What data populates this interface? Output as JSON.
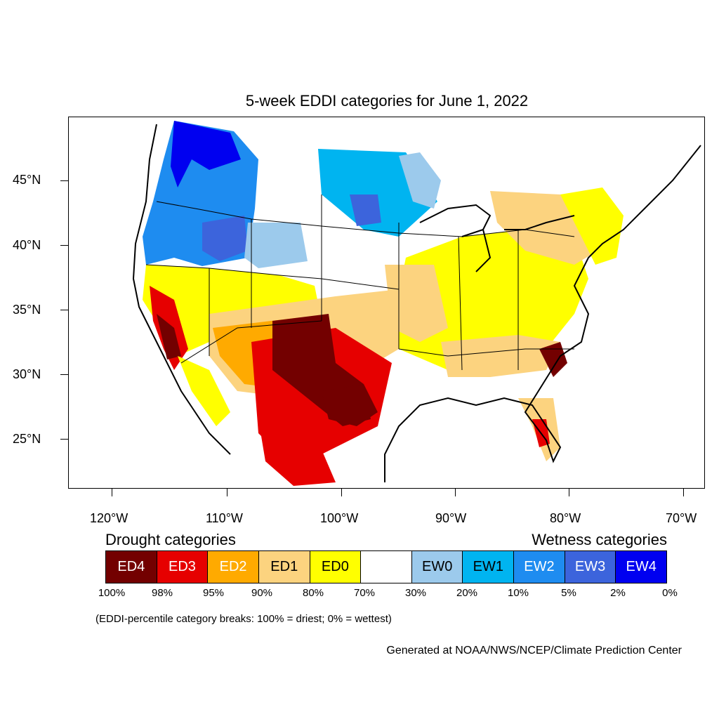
{
  "title": "5-week EDDI categories for June 1, 2022",
  "latitude_labels": [
    "45°N",
    "40°N",
    "35°N",
    "30°N",
    "25°N"
  ],
  "longitude_labels": [
    "120°W",
    "110°W",
    "100°W",
    "90°W",
    "80°W",
    "70°W"
  ],
  "legend": {
    "drought_title": "Drought categories",
    "wetness_title": "Wetness categories",
    "categories": [
      {
        "label": "ED4",
        "color": "#730000",
        "text_color": "#ffffff"
      },
      {
        "label": "ED3",
        "color": "#e60000",
        "text_color": "#ffffff"
      },
      {
        "label": "ED2",
        "color": "#ffaa00",
        "text_color": "#ffffff"
      },
      {
        "label": "ED1",
        "color": "#fcd37f",
        "text_color": "#000000"
      },
      {
        "label": "ED0",
        "color": "#ffff00",
        "text_color": "#000000"
      },
      {
        "label": "",
        "color": "#ffffff",
        "text_color": "#000000"
      },
      {
        "label": "EW0",
        "color": "#9ccaec",
        "text_color": "#000000"
      },
      {
        "label": "EW1",
        "color": "#00b4f0",
        "text_color": "#000000"
      },
      {
        "label": "EW2",
        "color": "#1e8cf0",
        "text_color": "#ffffff"
      },
      {
        "label": "EW3",
        "color": "#3c64dc",
        "text_color": "#ffffff"
      },
      {
        "label": "EW4",
        "color": "#0000f0",
        "text_color": "#ffffff"
      }
    ],
    "percentiles": [
      "100%",
      "98%",
      "95%",
      "90%",
      "80%",
      "70%",
      "30%",
      "20%",
      "10%",
      "5%",
      "2%",
      "0%"
    ]
  },
  "breaks_note": "(EDDI-percentile category breaks: 100% = driest; 0% = wettest)",
  "credit": "Generated at NOAA/NWS/NCEP/Climate Prediction Center"
}
